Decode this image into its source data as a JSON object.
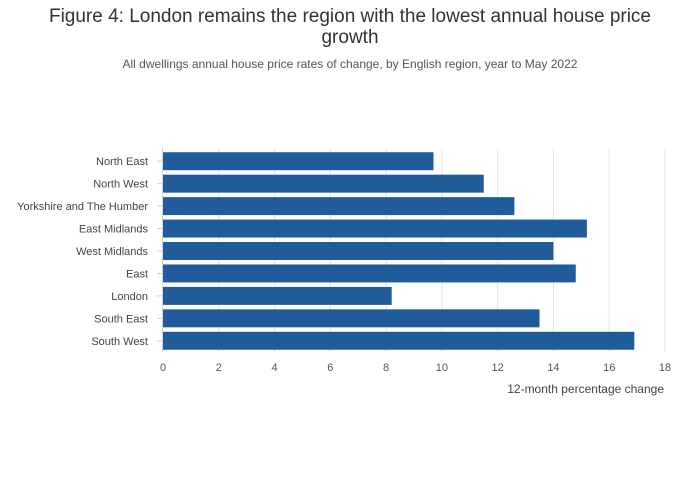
{
  "page": {
    "title": "Figure 4: London remains the region with the lowest annual house price growth",
    "subtitle": "All dwellings annual house price rates of change, by English region, year to May 2022"
  },
  "colors": {
    "bar": "#1f5c99",
    "grid": "#e5e5e5",
    "axis": "#d0d0d0"
  },
  "chart_data": {
    "type": "bar",
    "orientation": "horizontal",
    "title": "Figure 4: London remains the region with the lowest annual house price growth",
    "subtitle": "All dwellings annual house price rates of change, by English region, year to May 2022",
    "categories": [
      "North East",
      "North West",
      "Yorkshire and The Humber",
      "East Midlands",
      "West Midlands",
      "East",
      "London",
      "South East",
      "South West"
    ],
    "values": [
      9.7,
      11.5,
      12.6,
      15.2,
      14.0,
      14.8,
      8.2,
      13.5,
      16.9
    ],
    "xlabel": "12-month percentage change",
    "ylabel": "",
    "xlim": [
      0,
      18
    ],
    "xticks": [
      "0",
      "2",
      "4",
      "6",
      "8",
      "10",
      "12",
      "14",
      "16",
      "18"
    ],
    "grid": true,
    "legend": "none"
  }
}
